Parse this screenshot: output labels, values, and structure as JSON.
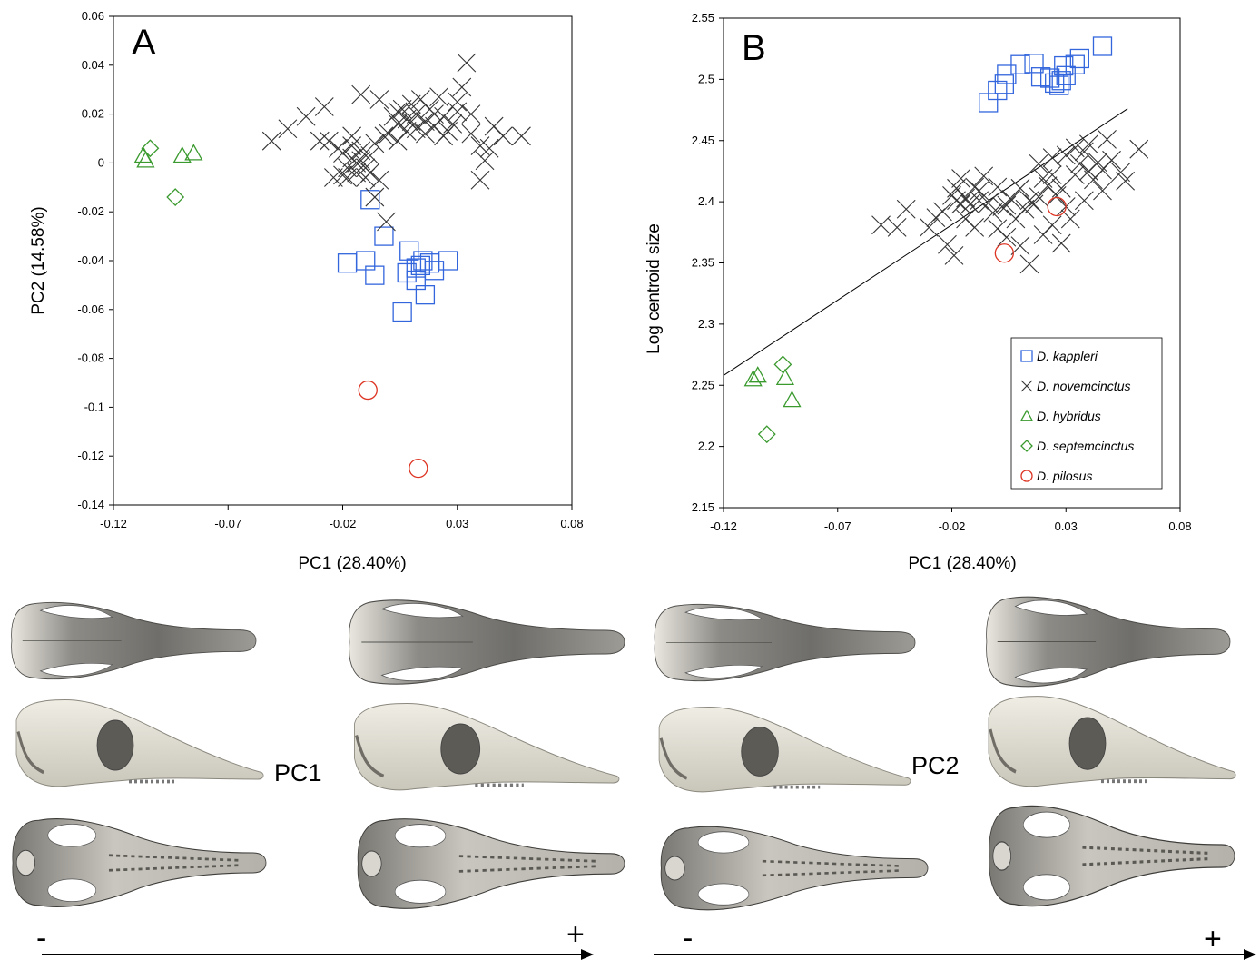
{
  "chart_data": [
    {
      "type": "scatter",
      "panel_label": "A",
      "xlabel": "PC1 (28.40%)",
      "ylabel": "PC2 (14.58%)",
      "xlim": [
        -0.12,
        0.08
      ],
      "ylim": [
        -0.14,
        0.06
      ],
      "xticks": [
        "-0.12",
        "-0.07",
        "-0.02",
        "0.03",
        "0.08"
      ],
      "yticks": [
        "0.06",
        "0.04",
        "0.02",
        "0",
        "-0.02",
        "-0.04",
        "-0.06",
        "-0.08",
        "-0.1",
        "-0.12",
        "-0.14"
      ],
      "series": [
        {
          "name": "D. kappleri",
          "marker": "square",
          "color": "#3366dd",
          "points": [
            [
              -0.008,
              -0.015
            ],
            [
              -0.002,
              -0.03
            ],
            [
              0.009,
              -0.036
            ],
            [
              -0.018,
              -0.041
            ],
            [
              -0.01,
              -0.04
            ],
            [
              -0.006,
              -0.046
            ],
            [
              0.012,
              -0.043
            ],
            [
              0.014,
              -0.042
            ],
            [
              0.015,
              -0.04
            ],
            [
              0.018,
              -0.041
            ],
            [
              0.02,
              -0.044
            ],
            [
              0.026,
              -0.04
            ],
            [
              0.012,
              -0.048
            ],
            [
              0.008,
              -0.045
            ],
            [
              0.016,
              -0.054
            ],
            [
              0.006,
              -0.061
            ]
          ]
        },
        {
          "name": "D. novemcinctus",
          "marker": "x",
          "color": "#333333",
          "points": [
            [
              -0.051,
              0.009
            ],
            [
              -0.044,
              0.014
            ],
            [
              -0.036,
              0.019
            ],
            [
              -0.028,
              0.023
            ],
            [
              -0.02,
              0.004
            ],
            [
              -0.016,
              0.002
            ],
            [
              -0.012,
              0.001
            ],
            [
              -0.008,
              0.003
            ],
            [
              -0.018,
              -0.002
            ],
            [
              -0.014,
              -0.004
            ],
            [
              -0.01,
              -0.002
            ],
            [
              -0.022,
              0.006
            ],
            [
              -0.026,
              0.009
            ],
            [
              -0.016,
              0.007
            ],
            [
              -0.012,
              0.005
            ],
            [
              -0.02,
              -0.005
            ],
            [
              -0.006,
              0.008
            ],
            [
              -0.014,
              0.0
            ],
            [
              -0.01,
              -0.006
            ],
            [
              -0.024,
              -0.006
            ],
            [
              -0.004,
              -0.007
            ],
            [
              0.0,
              0.012
            ],
            [
              0.004,
              0.016
            ],
            [
              0.008,
              0.018
            ],
            [
              0.012,
              0.02
            ],
            [
              0.016,
              0.017
            ],
            [
              0.02,
              0.015
            ],
            [
              0.024,
              0.019
            ],
            [
              0.01,
              0.024
            ],
            [
              0.014,
              0.026
            ],
            [
              0.006,
              0.022
            ],
            [
              0.018,
              0.022
            ],
            [
              0.002,
              0.019
            ],
            [
              0.028,
              0.016
            ],
            [
              0.03,
              0.025
            ],
            [
              0.032,
              0.031
            ],
            [
              0.036,
              0.012
            ],
            [
              0.04,
              0.007
            ],
            [
              0.042,
              0.001
            ],
            [
              0.046,
              0.015
            ],
            [
              0.05,
              0.011
            ],
            [
              0.058,
              0.011
            ],
            [
              0.034,
              0.041
            ],
            [
              -0.004,
              0.026
            ],
            [
              -0.012,
              0.028
            ],
            [
              0.022,
              0.027
            ],
            [
              0.016,
              0.012
            ],
            [
              0.008,
              0.013
            ],
            [
              -0.002,
              0.011
            ],
            [
              0.004,
              0.021
            ],
            [
              0.012,
              0.014
            ],
            [
              0.024,
              0.011
            ],
            [
              0.04,
              -0.007
            ],
            [
              -0.006,
              -0.014
            ],
            [
              -0.001,
              -0.024
            ],
            [
              0.03,
              0.021
            ],
            [
              0.02,
              0.02
            ],
            [
              0.01,
              0.017
            ],
            [
              0.026,
              0.013
            ],
            [
              0.036,
              0.02
            ],
            [
              0.044,
              0.006
            ],
            [
              -0.03,
              0.009
            ],
            [
              -0.018,
              -0.006
            ],
            [
              -0.008,
              -0.004
            ],
            [
              -0.016,
              0.011
            ],
            [
              0.004,
              0.009
            ]
          ]
        },
        {
          "name": "D. hybridus",
          "marker": "triangle",
          "color": "#3a9a2e",
          "points": [
            [
              -0.107,
              0.003
            ],
            [
              -0.106,
              0.001
            ],
            [
              -0.09,
              0.003
            ],
            [
              -0.085,
              0.004
            ]
          ]
        },
        {
          "name": "D. septemcinctus",
          "marker": "diamond",
          "color": "#3a9a2e",
          "points": [
            [
              -0.104,
              0.006
            ],
            [
              -0.093,
              -0.014
            ]
          ]
        },
        {
          "name": "D. pilosus",
          "marker": "circle",
          "color": "#dd3322",
          "points": [
            [
              -0.009,
              -0.093
            ],
            [
              0.013,
              -0.125
            ]
          ]
        }
      ]
    },
    {
      "type": "scatter",
      "panel_label": "B",
      "xlabel": "PC1 (28.40%)",
      "ylabel": "Log centroid size",
      "xlim": [
        -0.12,
        0.08
      ],
      "ylim": [
        2.15,
        2.55
      ],
      "xticks": [
        "-0.12",
        "-0.07",
        "-0.02",
        "0.03",
        "0.08"
      ],
      "yticks": [
        "2.55",
        "2.5",
        "2.45",
        "2.4",
        "2.35",
        "2.3",
        "2.25",
        "2.2",
        "2.15"
      ],
      "regression_line": [
        [
          -0.12,
          2.258
        ],
        [
          0.057,
          2.476
        ]
      ],
      "legend": [
        "D. kappleri",
        "D. novemcinctus",
        "D. hybridus",
        "D. septemcinctus",
        "D. pilosus"
      ],
      "series": [
        {
          "name": "D. kappleri",
          "marker": "square",
          "color": "#3366dd",
          "points": [
            [
              -0.004,
              2.481
            ],
            [
              0.0,
              2.491
            ],
            [
              0.003,
              2.496
            ],
            [
              0.004,
              2.504
            ],
            [
              0.01,
              2.512
            ],
            [
              0.016,
              2.513
            ],
            [
              0.019,
              2.502
            ],
            [
              0.023,
              2.501
            ],
            [
              0.025,
              2.497
            ],
            [
              0.027,
              2.495
            ],
            [
              0.028,
              2.499
            ],
            [
              0.029,
              2.511
            ],
            [
              0.03,
              2.503
            ],
            [
              0.034,
              2.512
            ],
            [
              0.036,
              2.517
            ],
            [
              0.046,
              2.527
            ]
          ]
        },
        {
          "name": "D. novemcinctus",
          "marker": "x",
          "color": "#333333",
          "points": [
            [
              -0.051,
              2.381
            ],
            [
              -0.044,
              2.379
            ],
            [
              -0.04,
              2.394
            ],
            [
              -0.03,
              2.379
            ],
            [
              -0.027,
              2.387
            ],
            [
              -0.024,
              2.392
            ],
            [
              -0.02,
              2.405
            ],
            [
              -0.018,
              2.411
            ],
            [
              -0.016,
              2.398
            ],
            [
              -0.014,
              2.403
            ],
            [
              -0.012,
              2.398
            ],
            [
              -0.01,
              2.412
            ],
            [
              -0.008,
              2.401
            ],
            [
              -0.004,
              2.399
            ],
            [
              -0.002,
              2.391
            ],
            [
              0.0,
              2.412
            ],
            [
              0.004,
              2.397
            ],
            [
              0.006,
              2.402
            ],
            [
              0.008,
              2.386
            ],
            [
              0.012,
              2.394
            ],
            [
              0.016,
              2.398
            ],
            [
              0.018,
              2.404
            ],
            [
              0.02,
              2.419
            ],
            [
              0.022,
              2.413
            ],
            [
              0.024,
              2.422
            ],
            [
              0.026,
              2.405
            ],
            [
              0.028,
              2.411
            ],
            [
              0.03,
              2.396
            ],
            [
              0.032,
              2.386
            ],
            [
              0.034,
              2.422
            ],
            [
              0.036,
              2.431
            ],
            [
              0.038,
              2.441
            ],
            [
              0.04,
              2.425
            ],
            [
              0.042,
              2.418
            ],
            [
              0.044,
              2.432
            ],
            [
              0.046,
              2.426
            ],
            [
              0.048,
              2.451
            ],
            [
              0.05,
              2.434
            ],
            [
              0.054,
              2.424
            ],
            [
              0.056,
              2.417
            ],
            [
              0.062,
              2.443
            ],
            [
              -0.022,
              2.365
            ],
            [
              -0.019,
              2.356
            ],
            [
              -0.014,
              2.386
            ],
            [
              -0.01,
              2.379
            ],
            [
              0.0,
              2.378
            ],
            [
              0.004,
              2.371
            ],
            [
              0.01,
              2.364
            ],
            [
              0.014,
              2.349
            ],
            [
              0.02,
              2.373
            ],
            [
              0.024,
              2.381
            ],
            [
              0.028,
              2.366
            ],
            [
              -0.006,
              2.421
            ],
            [
              -0.016,
              2.419
            ],
            [
              0.01,
              2.411
            ],
            [
              0.018,
              2.431
            ],
            [
              0.024,
              2.436
            ],
            [
              0.03,
              2.438
            ],
            [
              0.034,
              2.444
            ],
            [
              0.04,
              2.447
            ],
            [
              -0.008,
              2.409
            ],
            [
              -0.018,
              2.401
            ],
            [
              0.002,
              2.396
            ],
            [
              0.014,
              2.401
            ],
            [
              0.038,
              2.401
            ],
            [
              0.046,
              2.409
            ]
          ]
        },
        {
          "name": "D. hybridus",
          "marker": "triangle",
          "color": "#3a9a2e",
          "points": [
            [
              -0.107,
              2.255
            ],
            [
              -0.105,
              2.258
            ],
            [
              -0.093,
              2.256
            ],
            [
              -0.09,
              2.238
            ]
          ]
        },
        {
          "name": "D. septemcinctus",
          "marker": "diamond",
          "color": "#3a9a2e",
          "points": [
            [
              -0.101,
              2.21
            ],
            [
              -0.094,
              2.267
            ]
          ]
        },
        {
          "name": "D. pilosus",
          "marker": "circle",
          "color": "#dd3322",
          "points": [
            [
              0.003,
              2.358
            ],
            [
              0.026,
              2.396
            ]
          ]
        }
      ]
    }
  ],
  "skull_panel": {
    "pc1_label": "PC1",
    "pc2_label": "PC2",
    "minus_label": "-",
    "plus_label": "+"
  }
}
